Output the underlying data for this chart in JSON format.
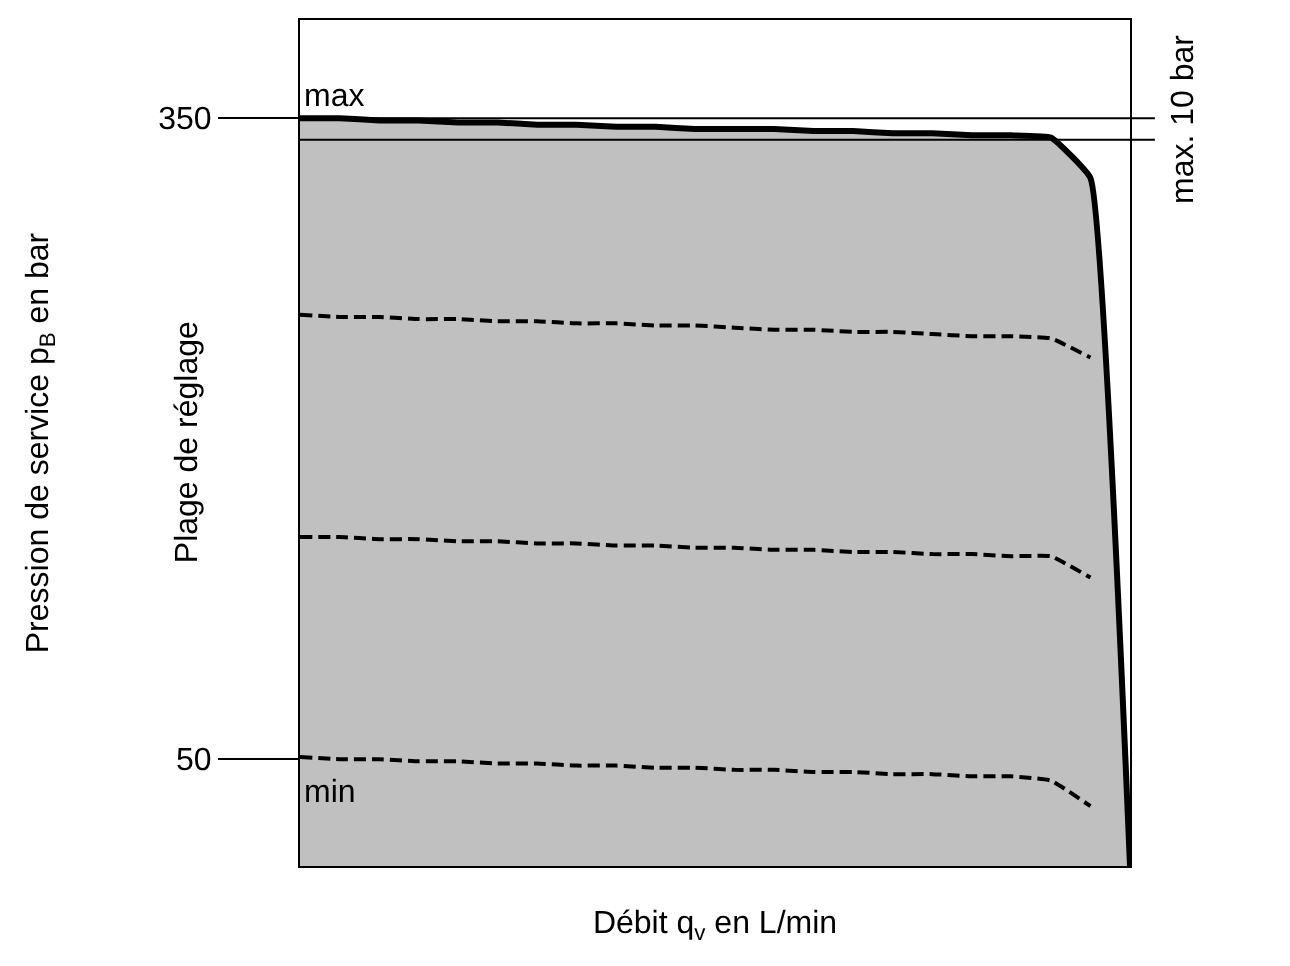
{
  "chart_data": {
    "type": "line",
    "xlabel": "Débit q$_{v}$ en L/min",
    "ylabel": "Pression de service p$_{B}$ en bar",
    "categories": [
      null,
      null,
      null,
      null,
      null,
      null,
      null,
      null,
      null,
      null,
      null,
      null,
      null,
      null,
      null,
      null,
      null,
      null,
      null,
      null,
      null,
      null
    ],
    "series": [
      {
        "type": "area",
        "color": "#c0c0c0",
        "line_style": "solid",
        "values": [
          350,
          350,
          349,
          349,
          348,
          348,
          347,
          347,
          346,
          346,
          345,
          345,
          345,
          344,
          344,
          343,
          343,
          342,
          342,
          341,
          322,
          0
        ]
      },
      {
        "color": "#000000",
        "line_style": "dashed",
        "values": [
          258,
          257,
          257,
          256,
          256,
          255,
          255,
          254,
          254,
          253,
          253,
          252,
          251,
          251,
          250,
          250,
          249,
          248,
          248,
          247,
          238,
          null
        ]
      },
      {
        "color": "#000000",
        "line_style": "dashed",
        "values": [
          154,
          154,
          153,
          153,
          152,
          152,
          151,
          151,
          150,
          150,
          149,
          149,
          148,
          148,
          147,
          147,
          146,
          146,
          145,
          145,
          135,
          null
        ]
      },
      {
        "color": "#000000",
        "line_style": "dashed",
        "values": [
          51,
          50,
          50,
          49,
          49,
          48,
          48,
          47,
          47,
          46,
          46,
          45,
          45,
          44,
          44,
          43,
          43,
          42,
          42,
          40,
          28,
          null
        ]
      }
    ],
    "ylim": [
      0,
      396
    ],
    "yticks": [
      50,
      350
    ],
    "ref_lines": [
      {
        "axis": "y",
        "value": 350,
        "label": "max. 10 bar"
      },
      {
        "axis": "y",
        "value": 340
      }
    ],
    "annotations": [
      "max",
      "min",
      "Plage de réglage"
    ],
    "tick_labels": "y",
    "legend": false,
    "marker": "none"
  }
}
